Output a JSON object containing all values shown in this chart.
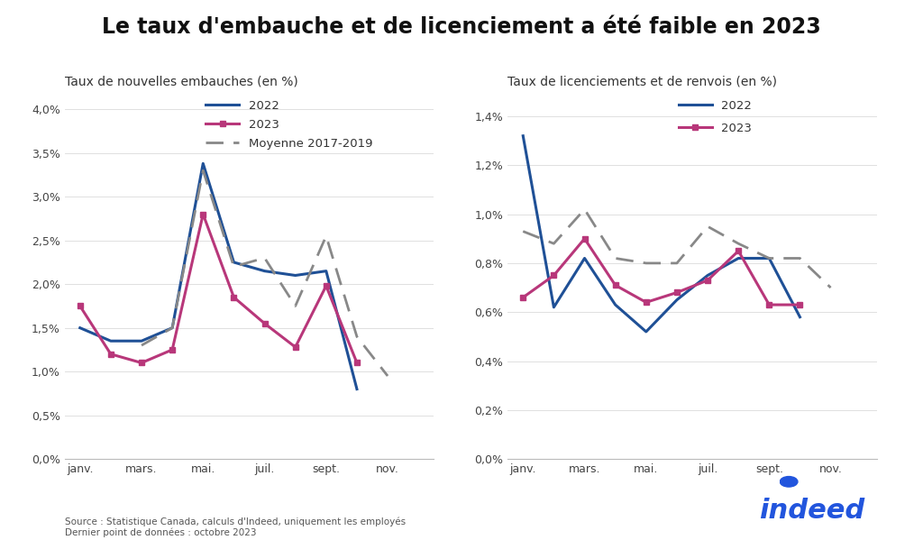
{
  "title": "Le taux d'embauche et de licenciement a été faible en 2023",
  "title_fontsize": 17,
  "subtitle_left": "Taux de nouvelles embauches (en %)",
  "subtitle_right": "Taux de licenciements et de renvois (en %)",
  "subtitle_fontsize": 10,
  "x_ticks_labels": [
    "janv.",
    "mars.",
    "mai.",
    "juil.",
    "sept.",
    "nov."
  ],
  "x_ticks_positions": [
    0,
    2,
    4,
    6,
    8,
    10
  ],
  "left_2022": [
    1.5,
    1.35,
    1.35,
    1.5,
    3.38,
    2.25,
    2.15,
    2.1,
    2.15,
    0.8,
    null,
    null
  ],
  "left_2023": [
    1.75,
    1.2,
    1.1,
    1.25,
    2.8,
    1.85,
    1.55,
    1.28,
    1.98,
    1.1,
    null,
    null
  ],
  "left_avg": [
    null,
    null,
    1.3,
    1.5,
    3.3,
    2.2,
    2.3,
    1.75,
    2.55,
    1.4,
    0.95,
    null
  ],
  "right_2022": [
    1.32,
    0.62,
    0.82,
    0.63,
    0.52,
    0.65,
    0.75,
    0.82,
    0.82,
    0.58,
    null,
    null
  ],
  "right_2023": [
    0.66,
    0.75,
    0.9,
    0.71,
    0.64,
    0.68,
    0.73,
    0.85,
    0.63,
    0.63,
    null,
    null
  ],
  "right_avg": [
    0.93,
    0.88,
    1.02,
    0.82,
    0.8,
    0.8,
    0.95,
    0.88,
    0.82,
    0.82,
    0.7,
    null
  ],
  "color_2022": "#1f5096",
  "color_2023": "#b8377a",
  "color_avg": "#888888",
  "yticks_left": [
    0.0,
    0.5,
    1.0,
    1.5,
    2.0,
    2.5,
    3.0,
    3.5,
    4.0
  ],
  "ytick_labels_left": [
    "0,0%",
    "0,5%",
    "1,0%",
    "1,5%",
    "2,0%",
    "2,5%",
    "3,0%",
    "3,5%",
    "4,0%"
  ],
  "ylim_left": [
    0,
    4.2
  ],
  "yticks_right": [
    0.0,
    0.2,
    0.4,
    0.6,
    0.8,
    1.0,
    1.2,
    1.4
  ],
  "ytick_labels_right": [
    "0,0%",
    "0,2%",
    "0,4%",
    "0,6%",
    "0,8%",
    "1,0%",
    "1,2%",
    "1,4%"
  ],
  "ylim_right": [
    0,
    1.5
  ],
  "source_text": "Source : Statistique Canada, calculs d'Indeed, uniquement les employés\nDernier point de données : octobre 2023",
  "indeed_color": "#2255dd",
  "background_color": "#ffffff"
}
